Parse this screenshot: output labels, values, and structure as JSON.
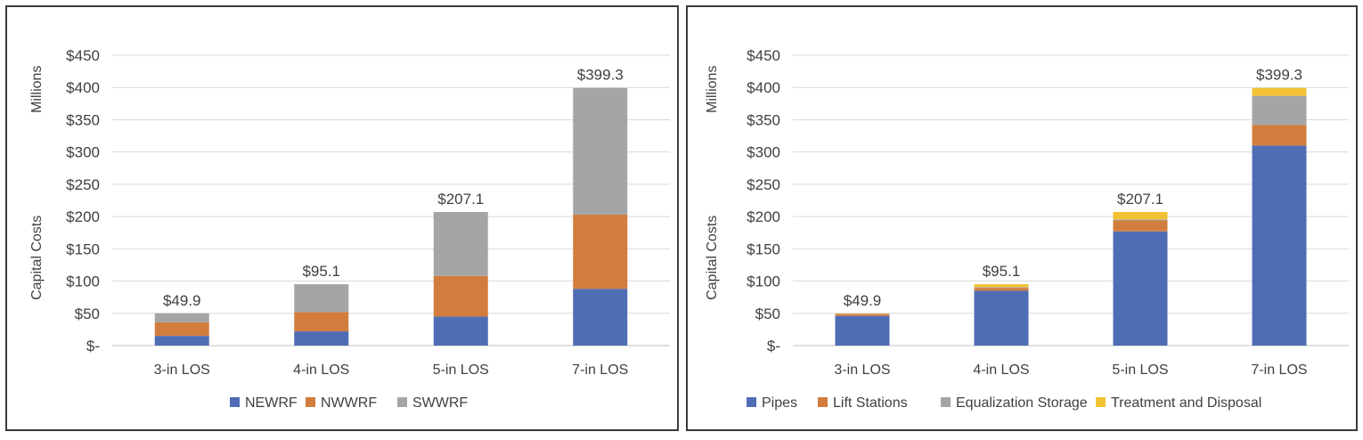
{
  "chart_data": [
    {
      "type": "bar",
      "stacked": true,
      "categories": [
        "3-in LOS",
        "4-in LOS",
        "5-in LOS",
        "7-in LOS"
      ],
      "series": [
        {
          "name": "NEWRF",
          "color": "#4f6db5",
          "values": [
            15,
            22,
            45,
            88
          ]
        },
        {
          "name": "NWWRF",
          "color": "#d27d3e",
          "values": [
            21,
            30,
            63,
            115
          ]
        },
        {
          "name": "SWWRF",
          "color": "#a5a5a5",
          "values": [
            13.9,
            43.1,
            99.1,
            196.3
          ]
        }
      ],
      "totals": [
        "$49.9",
        "$95.1",
        "$207.1",
        "$399.3"
      ],
      "ylabel": "Capital Costs",
      "yunit": "Millions",
      "ylim": [
        0,
        450
      ],
      "yticks": [
        0,
        50,
        100,
        150,
        200,
        250,
        300,
        350,
        400,
        450
      ],
      "ytick_labels": [
        "$-",
        "$50",
        "$100",
        "$150",
        "$200",
        "$250",
        "$300",
        "$350",
        "$400",
        "$450"
      ],
      "grid": true,
      "legend": "bottom"
    },
    {
      "type": "bar",
      "stacked": true,
      "categories": [
        "3-in LOS",
        "4-in LOS",
        "5-in LOS",
        "7-in LOS"
      ],
      "series": [
        {
          "name": "Pipes",
          "color": "#4f6db5",
          "values": [
            46,
            85,
            177,
            310
          ]
        },
        {
          "name": "Lift Stations",
          "color": "#d27d3e",
          "values": [
            2.9,
            4.5,
            17,
            32
          ]
        },
        {
          "name": "Equalization Storage",
          "color": "#a5a5a5",
          "values": [
            0.5,
            1.1,
            1.6,
            45
          ]
        },
        {
          "name": "Treatment and Disposal",
          "color": "#f2c234",
          "values": [
            0.5,
            4.5,
            11.5,
            12.3
          ]
        }
      ],
      "totals": [
        "$49.9",
        "$95.1",
        "$207.1",
        "$399.3"
      ],
      "ylabel": "Capital Costs",
      "yunit": "Millions",
      "ylim": [
        0,
        450
      ],
      "yticks": [
        0,
        50,
        100,
        150,
        200,
        250,
        300,
        350,
        400,
        450
      ],
      "ytick_labels": [
        "$-",
        "$50",
        "$100",
        "$150",
        "$200",
        "$250",
        "$300",
        "$350",
        "$400",
        "$450"
      ],
      "grid": true,
      "legend": "bottom"
    }
  ]
}
